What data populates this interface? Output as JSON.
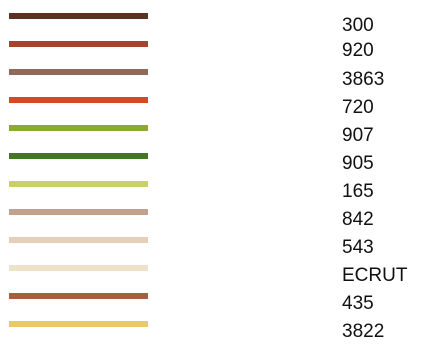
{
  "swatches": [
    {
      "code": "300",
      "color": "#5a3123"
    },
    {
      "code": "920",
      "color": "#a6432e"
    },
    {
      "code": "3863",
      "color": "#8f6a58"
    },
    {
      "code": "720",
      "color": "#d44a23"
    },
    {
      "code": "907",
      "color": "#8bab30"
    },
    {
      "code": "905",
      "color": "#437725"
    },
    {
      "code": "165",
      "color": "#c8d06a"
    },
    {
      "code": "842",
      "color": "#c0a28f"
    },
    {
      "code": "543",
      "color": "#e6cfb8"
    },
    {
      "code": "ECRUT",
      "color": "#ede3ca"
    },
    {
      "code": "435",
      "color": "#a6603c"
    },
    {
      "code": "3822",
      "color": "#eac967"
    }
  ]
}
